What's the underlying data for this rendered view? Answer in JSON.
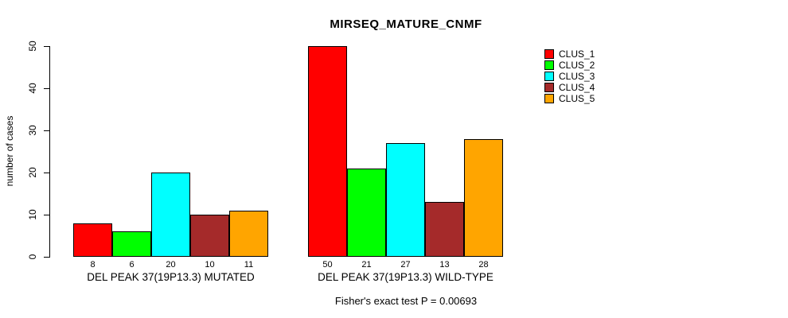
{
  "title": "MIRSEQ_MATURE_CNMF",
  "footer": "Fisher's exact test P = 0.00693",
  "chart_data": {
    "type": "bar",
    "title": "MIRSEQ_MATURE_CNMF",
    "xlabel": "",
    "ylabel": "number of cases",
    "ylim": [
      0,
      50
    ],
    "yticks": [
      0,
      10,
      20,
      30,
      40,
      50
    ],
    "grid": false,
    "legend_position": "top-right",
    "bar_value_labels_shown": true,
    "categories": [
      "DEL PEAK 37(19P13.3) MUTATED",
      "DEL PEAK 37(19P13.3) WILD-TYPE"
    ],
    "series": [
      {
        "name": "CLUS_1",
        "color": "#FF0000",
        "values": [
          8,
          50
        ]
      },
      {
        "name": "CLUS_2",
        "color": "#00FF00",
        "values": [
          6,
          21
        ]
      },
      {
        "name": "CLUS_3",
        "color": "#00FFFF",
        "values": [
          20,
          27
        ]
      },
      {
        "name": "CLUS_4",
        "color": "#A52A2A",
        "values": [
          10,
          13
        ]
      },
      {
        "name": "CLUS_5",
        "color": "#FFA500",
        "values": [
          11,
          28
        ]
      }
    ],
    "annotation": "Fisher's exact test P = 0.00693"
  }
}
